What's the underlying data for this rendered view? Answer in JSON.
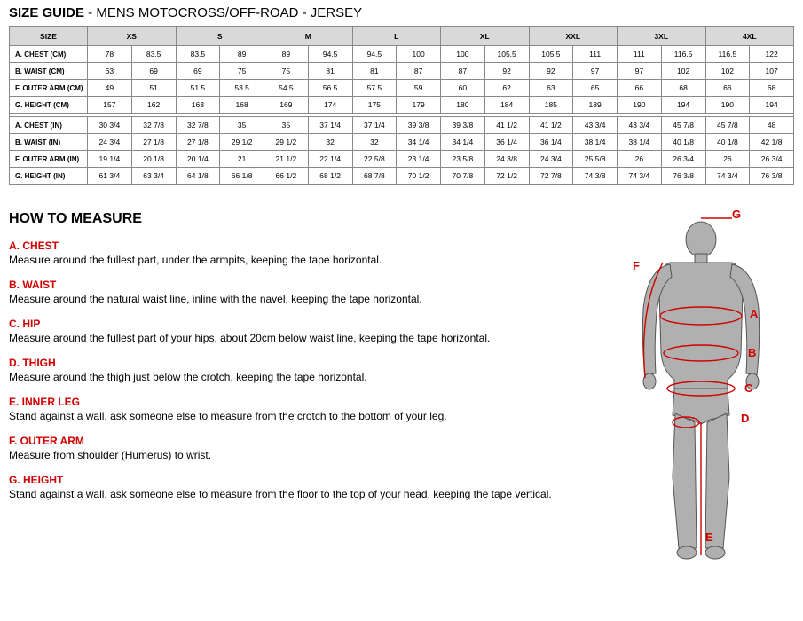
{
  "title_prefix": "SIZE GUIDE",
  "title_suffix": " - MENS MOTOCROSS/OFF-ROAD - JERSEY",
  "table": {
    "header": [
      "SIZE",
      "XS",
      "XS",
      "S",
      "S",
      "M",
      "M",
      "L",
      "L",
      "XL",
      "XL",
      "XXL",
      "XXL",
      "3XL",
      "3XL",
      "4XL",
      "4XL"
    ],
    "header_spans": [
      1,
      2,
      2,
      2,
      2,
      2,
      2,
      2,
      2
    ],
    "cm_rows": [
      {
        "label": "A. CHEST (CM)",
        "vals": [
          "78",
          "83.5",
          "83.5",
          "89",
          "89",
          "94.5",
          "94.5",
          "100",
          "100",
          "105.5",
          "105.5",
          "111",
          "111",
          "116.5",
          "116.5",
          "122"
        ]
      },
      {
        "label": "B. WAIST (CM)",
        "vals": [
          "63",
          "69",
          "69",
          "75",
          "75",
          "81",
          "81",
          "87",
          "87",
          "92",
          "92",
          "97",
          "97",
          "102",
          "102",
          "107"
        ]
      },
      {
        "label": "F. OUTER ARM (CM)",
        "vals": [
          "49",
          "51",
          "51.5",
          "53.5",
          "54.5",
          "56.5",
          "57.5",
          "59",
          "60",
          "62",
          "63",
          "65",
          "66",
          "68",
          "66",
          "68"
        ]
      },
      {
        "label": "G. HEIGHT (CM)",
        "vals": [
          "157",
          "162",
          "163",
          "168",
          "169",
          "174",
          "175",
          "179",
          "180",
          "184",
          "185",
          "189",
          "190",
          "194",
          "190",
          "194"
        ]
      }
    ],
    "in_rows": [
      {
        "label": "A. CHEST (IN)",
        "vals": [
          "30 3/4",
          "32 7/8",
          "32 7/8",
          "35",
          "35",
          "37 1/4",
          "37 1/4",
          "39 3/8",
          "39 3/8",
          "41 1/2",
          "41 1/2",
          "43 3/4",
          "43 3/4",
          "45 7/8",
          "45 7/8",
          "48"
        ]
      },
      {
        "label": "B. WAIST (IN)",
        "vals": [
          "24 3/4",
          "27 1/8",
          "27 1/8",
          "29 1/2",
          "29 1/2",
          "32",
          "32",
          "34 1/4",
          "34 1/4",
          "36 1/4",
          "36 1/4",
          "38 1/4",
          "38 1/4",
          "40 1/8",
          "40 1/8",
          "42 1/8"
        ]
      },
      {
        "label": "F. OUTER ARM (IN)",
        "vals": [
          "19 1/4",
          "20 1/8",
          "20 1/4",
          "21",
          "21 1/2",
          "22 1/4",
          "22 5/8",
          "23 1/4",
          "23 5/8",
          "24 3/8",
          "24 3/4",
          "25 5/8",
          "26",
          "26 3/4",
          "26",
          "26 3/4"
        ]
      },
      {
        "label": "G. HEIGHT (IN)",
        "vals": [
          "61 3/4",
          "63 3/4",
          "64 1/8",
          "66 1/8",
          "66 1/2",
          "68 1/2",
          "68 7/8",
          "70 1/2",
          "70 7/8",
          "72 1/2",
          "72 7/8",
          "74 3/8",
          "74 3/4",
          "76 3/8",
          "74 3/4",
          "76 3/8"
        ]
      }
    ]
  },
  "measure": {
    "heading": "HOW TO MEASURE",
    "items": [
      {
        "key": "A. CHEST",
        "desc": "Measure around the fullest part, under the armpits, keeping the tape horizontal."
      },
      {
        "key": "B. WAIST",
        "desc": "Measure around the natural waist line, inline with the navel, keeping the tape horizontal."
      },
      {
        "key": "C. HIP",
        "desc": "Measure around the fullest part of your hips, about 20cm below waist line, keeping the tape horizontal."
      },
      {
        "key": "D. THIGH",
        "desc": "Measure around the thigh just below the crotch, keeping the tape horizontal."
      },
      {
        "key": "E. INNER LEG",
        "desc": "Stand against a wall, ask someone else to measure from the crotch to the bottom of your leg."
      },
      {
        "key": "F. OUTER ARM",
        "desc": "Measure from shoulder (Humerus) to wrist."
      },
      {
        "key": "G. HEIGHT",
        "desc": "Stand against a wall, ask someone else to measure from the floor to the top of your head, keeping the tape vertical."
      }
    ]
  },
  "figure": {
    "labels": {
      "G": "G",
      "F": "F",
      "A": "A",
      "B": "B",
      "C": "C",
      "D": "D",
      "E": "E"
    },
    "colors": {
      "body_fill": "#b0b0b0",
      "body_stroke": "#555",
      "line": "#d00000",
      "label": "#d00000"
    }
  }
}
